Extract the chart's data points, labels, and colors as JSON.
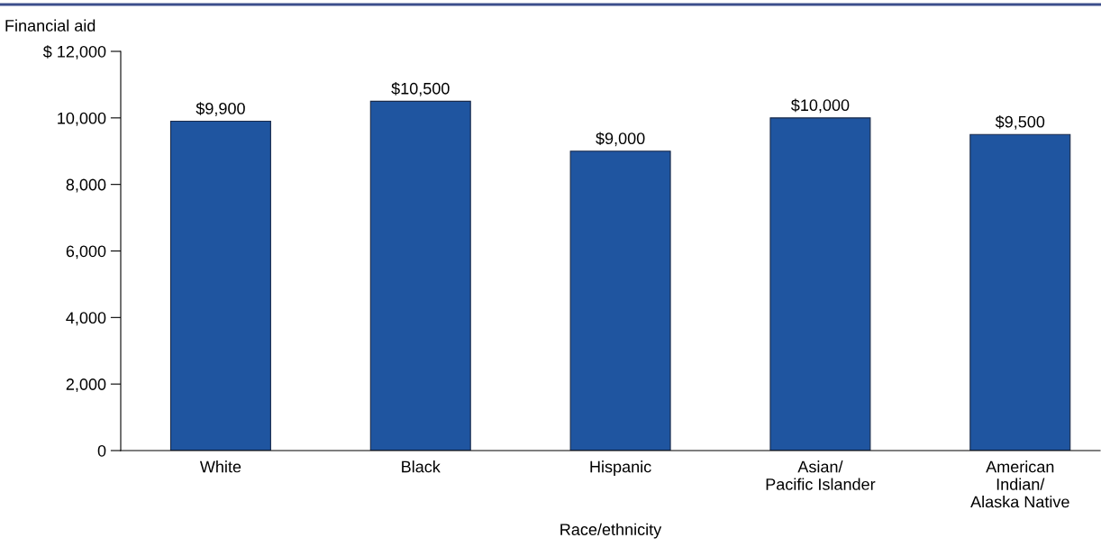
{
  "chart_data": {
    "type": "bar",
    "ylabel": "Financial aid",
    "xlabel": "Race/ethnicity",
    "categories": [
      "White",
      "Black",
      "Hispanic",
      "Asian/\nPacific Islander",
      "American\nIndian/\nAlaska Native"
    ],
    "values": [
      9900,
      10500,
      9000,
      10000,
      9500
    ],
    "value_labels": [
      "$9,900",
      "$10,500",
      "$9,000",
      "$10,000",
      "$9,500"
    ],
    "color": "#1f55a0",
    "ylim": [
      0,
      12000
    ],
    "yticks": [
      0,
      {
        "value": 2000,
        "label": "2,000"
      },
      {
        "value": 4000,
        "label": "4,000"
      },
      {
        "value": 6000,
        "label": "6,000"
      },
      {
        "value": 8000,
        "label": "8,000"
      },
      {
        "value": 10000,
        "label": "10,000"
      },
      {
        "value": 12000,
        "label": "$ 12,000"
      }
    ],
    "grid": false,
    "legend": false
  }
}
